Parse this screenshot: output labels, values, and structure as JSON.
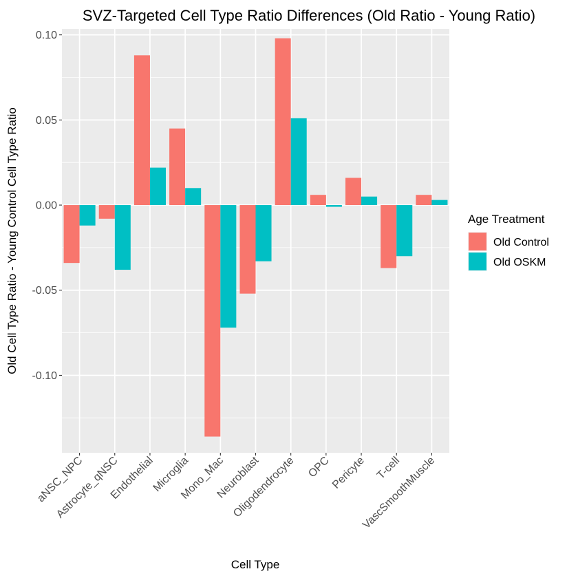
{
  "chart_data": {
    "type": "bar",
    "title": "SVZ-Targeted Cell Type Ratio Differences (Old Ratio - Young Ratio)",
    "xlabel": "Cell Type",
    "ylabel": "Old Cell Type Ratio - Young Control Cell Type Ratio",
    "categories": [
      "aNSC_NPC",
      "Astrocyte_qNSC",
      "Endothelial",
      "Microglia",
      "Mono_Mac",
      "Neuroblast",
      "Oligodendrocyte",
      "OPC",
      "Pericyte",
      "T-cell",
      "VascSmoothMuscle"
    ],
    "series": [
      {
        "name": "Old Control",
        "color": "#F8766D",
        "values": [
          -0.034,
          -0.008,
          0.088,
          0.045,
          -0.136,
          -0.052,
          0.098,
          0.006,
          0.016,
          -0.037,
          0.006
        ]
      },
      {
        "name": "Old OSKM",
        "color": "#00BFC4",
        "values": [
          -0.012,
          -0.038,
          0.022,
          0.01,
          -0.072,
          -0.033,
          0.051,
          -0.001,
          0.005,
          -0.03,
          0.003
        ]
      }
    ],
    "ylim": [
      -0.1455,
      0.1035
    ],
    "yticks": [
      0.1,
      0.05,
      0.0,
      -0.05,
      -0.1
    ],
    "ytick_labels": [
      "0.10",
      "0.05",
      "0.00",
      "-0.05",
      "-0.10"
    ],
    "legend": {
      "title": "Age Treatment",
      "position": "right"
    },
    "grid": true,
    "panel_background": "#EBEBEB"
  }
}
